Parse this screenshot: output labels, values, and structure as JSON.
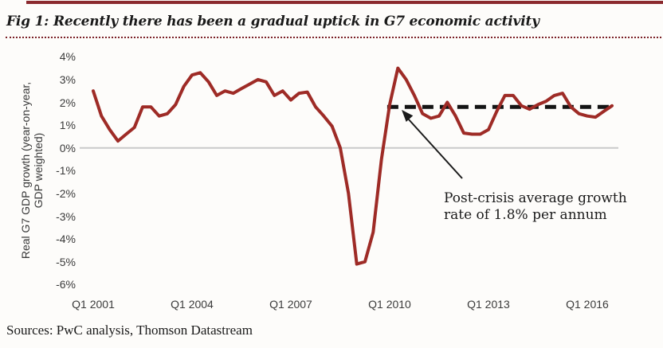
{
  "figure": {
    "title": "Fig 1: Recently there has been a gradual uptick in G7 economic activity",
    "sources": "Sources: PwC analysis, Thomson Datastream"
  },
  "chart_data": {
    "type": "line",
    "title": "Fig 1: Recently there has been a gradual uptick in G7 economic activity",
    "ylabel": "Real G7 GDP growth (year-on-year, GDP weighted)",
    "ylabel_line1": "Real G7 GDP growth (year-on-year,",
    "ylabel_line2": "GDP weighted)",
    "xlabel": "",
    "ylim": [
      -6,
      4
    ],
    "grid": "zero-line only",
    "y_ticks": [
      "4%",
      "3%",
      "2%",
      "1%",
      "0%",
      "-1%",
      "-2%",
      "-3%",
      "-4%",
      "-5%",
      "-6%"
    ],
    "y_tick_values": [
      4,
      3,
      2,
      1,
      0,
      -1,
      -2,
      -3,
      -4,
      -5,
      -6
    ],
    "x_ticks": [
      "Q1 2001",
      "Q1 2004",
      "Q1 2007",
      "Q1 2010",
      "Q1 2013",
      "Q1 2016"
    ],
    "x_tick_quarters": [
      0,
      12,
      24,
      36,
      48,
      60
    ],
    "x_start": "Q1 2001",
    "x_end": "Q4 2016",
    "frequency": "quarterly",
    "series": [
      {
        "name": "Real G7 GDP growth (year-on-year, GDP weighted)",
        "color": "#9e2b26",
        "values": [
          2.5,
          1.4,
          0.8,
          0.3,
          0.6,
          0.9,
          1.8,
          1.8,
          1.4,
          1.5,
          1.9,
          2.7,
          3.2,
          3.3,
          2.9,
          2.3,
          2.5,
          2.4,
          2.6,
          2.8,
          3.0,
          2.9,
          2.3,
          2.5,
          2.1,
          2.4,
          2.45,
          1.8,
          1.4,
          0.95,
          0.0,
          -2.0,
          -5.1,
          -5.0,
          -3.7,
          -0.5,
          1.9,
          3.5,
          3.0,
          2.3,
          1.5,
          1.3,
          1.4,
          2.0,
          1.4,
          0.65,
          0.6,
          0.6,
          0.8,
          1.6,
          2.3,
          2.3,
          1.85,
          1.7,
          1.9,
          2.05,
          2.3,
          2.4,
          1.8,
          1.5,
          1.4,
          1.35,
          1.6,
          1.85
        ]
      },
      {
        "name": "Post-crisis average growth rate",
        "style": "dashed",
        "color": "#141414",
        "value": 1.8,
        "start_quarter": 35.7,
        "end_quarter": 63.2
      }
    ],
    "annotation": {
      "line1": "Post-crisis average growth",
      "line2": "rate of 1.8% per annum"
    }
  },
  "colors": {
    "line": "#9e2b26",
    "average_dash": "#141414",
    "top_bar": "#8b2a2e",
    "dotted_rule": "#7b2127",
    "zero_gridline": "#c9c9c9",
    "text": "#1a1a1a",
    "axis_text": "#3a3a3a"
  }
}
